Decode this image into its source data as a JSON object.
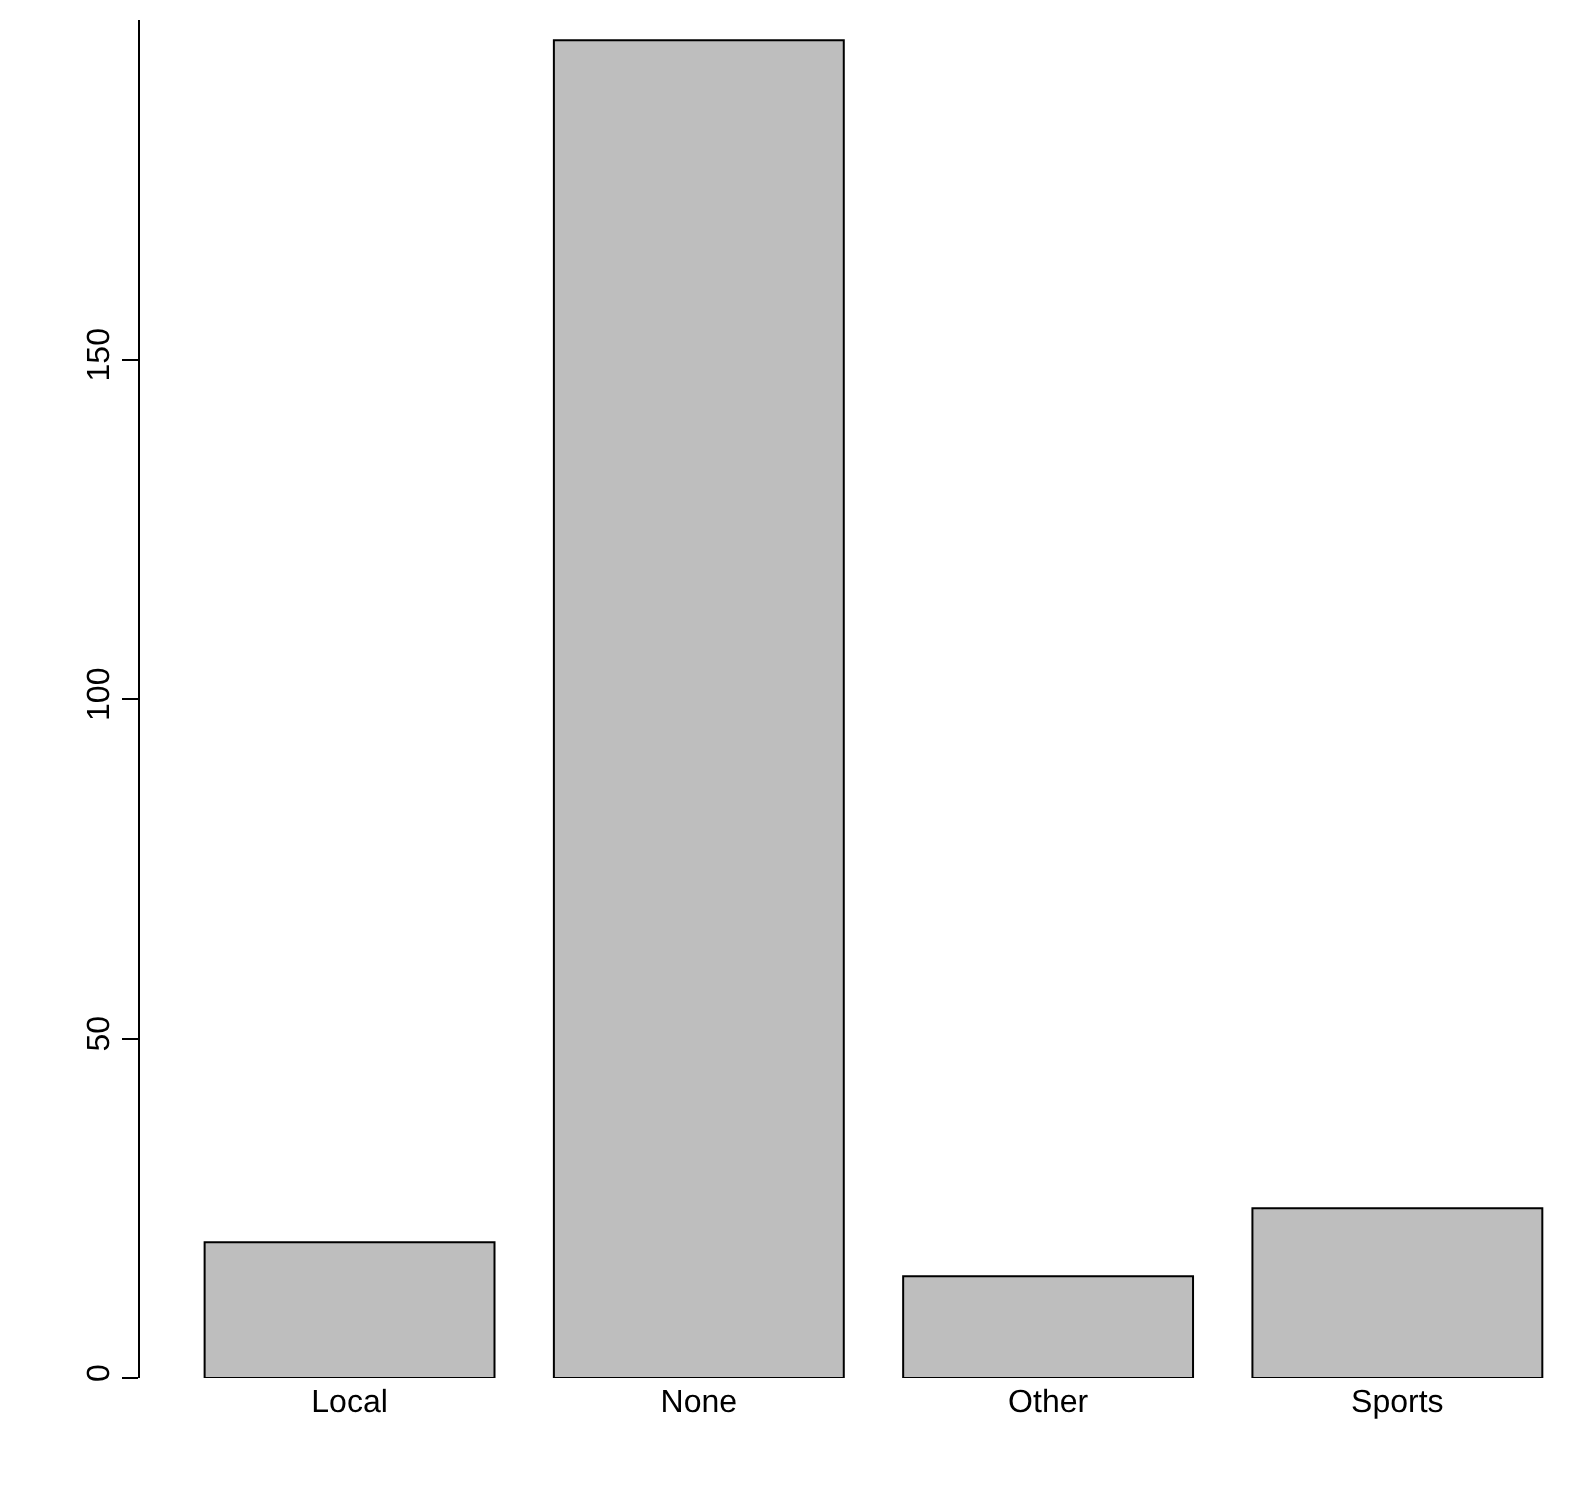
{
  "chart_data": {
    "type": "bar",
    "categories": [
      "Local",
      "None",
      "Other",
      "Sports"
    ],
    "values": [
      20,
      197,
      15,
      25
    ],
    "color": "#bebebe",
    "ylim": [
      0,
      200
    ],
    "yticks": [
      0,
      50,
      100,
      150
    ]
  }
}
